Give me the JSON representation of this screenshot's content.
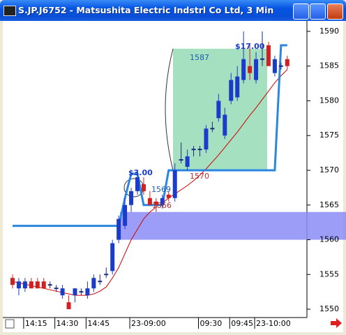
{
  "window": {
    "title": "S.JP.J6752 - Matsushita Electric Indstrl Co Ltd, 3 Min"
  },
  "chart_data": {
    "type": "candlestick",
    "categories": [
      null,
      null,
      "14:15",
      null,
      null,
      null,
      null,
      "14:30",
      null,
      null,
      null,
      null,
      "14:45",
      null,
      null,
      null,
      null,
      null,
      null,
      "23-09:00",
      null,
      null,
      null,
      null,
      null,
      null,
      null,
      null,
      null,
      null,
      "09:30",
      null,
      null,
      null,
      null,
      "09:45",
      null,
      null,
      null,
      "23-10:00",
      null,
      null,
      null,
      null,
      null
    ],
    "open": [
      1554.5,
      1553,
      1553,
      1554,
      1554,
      1554,
      1553.5,
      1553,
      1552,
      1551,
      1552,
      1552.5,
      1552,
      1553,
      1554,
      1555,
      1555.5,
      1560,
      1562,
      1565,
      1567,
      1568,
      1566,
      1565.5,
      1565,
      1566.5,
      1566,
      1571.5,
      1570.5,
      1573,
      1573,
      1573,
      1576,
      1577.5,
      1575,
      1580,
      1580.5,
      1583,
      1585,
      1583,
      1586,
      1588,
      1584,
      1585,
      1586
    ],
    "high": [
      1555,
      1554.5,
      1554.5,
      1554.5,
      1554.5,
      1554.5,
      1554,
      1553.5,
      1553.5,
      1552,
      1553,
      1553,
      1554,
      1555,
      1555,
      1556,
      1560,
      1563.5,
      1566,
      1567.5,
      1570,
      1569,
      1567,
      1566,
      1566.5,
      1567,
      1571,
      1574,
      1573,
      1573.5,
      1573.5,
      1576.5,
      1577,
      1581,
      1579,
      1584,
      1585,
      1590,
      1588,
      1587,
      1590,
      1588.5,
      1586.5,
      1585.5,
      1586.5
    ],
    "low": [
      1553,
      1552,
      1552.5,
      1553,
      1553,
      1553,
      1553,
      1552.5,
      1551.5,
      1550,
      1551,
      1552,
      1551.5,
      1552.5,
      1553.5,
      1554.5,
      1555,
      1559.5,
      1561.5,
      1564,
      1566.5,
      1566.5,
      1565,
      1564,
      1564.5,
      1565.5,
      1565.5,
      1571,
      1570,
      1572,
      1572,
      1572.5,
      1575.5,
      1577,
      1574.5,
      1579.5,
      1580,
      1582.5,
      1583,
      1582.5,
      1585,
      1585,
      1583.5,
      1584.5,
      1584.5
    ],
    "close": [
      1553.5,
      1554,
      1554,
      1553,
      1553,
      1553,
      1553.5,
      1553,
      1553,
      1550,
      1553,
      1552.5,
      1553,
      1554.5,
      1554,
      1555,
      1559.5,
      1563,
      1565,
      1567,
      1569,
      1567,
      1565,
      1565,
      1566,
      1566,
      1570,
      1571.5,
      1572,
      1573,
      1573,
      1576,
      1576,
      1580,
      1578,
      1583,
      1583.5,
      1586,
      1584,
      1586,
      1586,
      1585,
      1586,
      1585,
      1585
    ],
    "up_color": "#1a3cc8",
    "down_color": "#d02020",
    "flat_color": "#1a2a80",
    "lines": [
      {
        "color": "#d00000",
        "values": [
          1554,
          1553.8,
          1553.6,
          1553.4,
          1553.2,
          1553,
          1552.8,
          1552.6,
          1552.4,
          1552.2,
          1552,
          1552,
          1552,
          1552.2,
          1552.6,
          1553.2,
          1554.5,
          1556,
          1558,
          1560,
          1561.5,
          1563,
          1564,
          1564.7,
          1565.3,
          1566,
          1566.6,
          1567.2,
          1567.8,
          1568.5,
          1569.3,
          1570.2,
          1571.2,
          1572.2,
          1573.3,
          1574.4,
          1575.5,
          1576.7,
          1577.9,
          1579,
          1580.2,
          1581.4,
          1582.6,
          1583.6,
          1584.5
        ]
      },
      {
        "color": "#2a86e0",
        "values": [
          1562,
          1562,
          1562,
          1562,
          1562,
          1562,
          1562,
          1562,
          1562,
          1562,
          1562,
          1562,
          1562,
          1562,
          1562,
          1562,
          1562,
          1562,
          1566,
          1569.5,
          1569.5,
          1565,
          1565,
          1565,
          1565,
          1570,
          1570,
          1570,
          1570,
          1570,
          1570,
          1570,
          1570,
          1570,
          1570,
          1570,
          1570,
          1570,
          1570,
          1570,
          1570,
          1570,
          1570,
          1588,
          1588
        ]
      }
    ],
    "annotations": [
      "1587",
      "$17.00",
      "1570",
      "$3.00",
      "1569",
      "1566"
    ],
    "ylim": [
      1548.8,
      1591.3
    ],
    "yticks": [
      1550,
      1555,
      1560,
      1565,
      1570,
      1575,
      1580,
      1585,
      1590
    ]
  }
}
